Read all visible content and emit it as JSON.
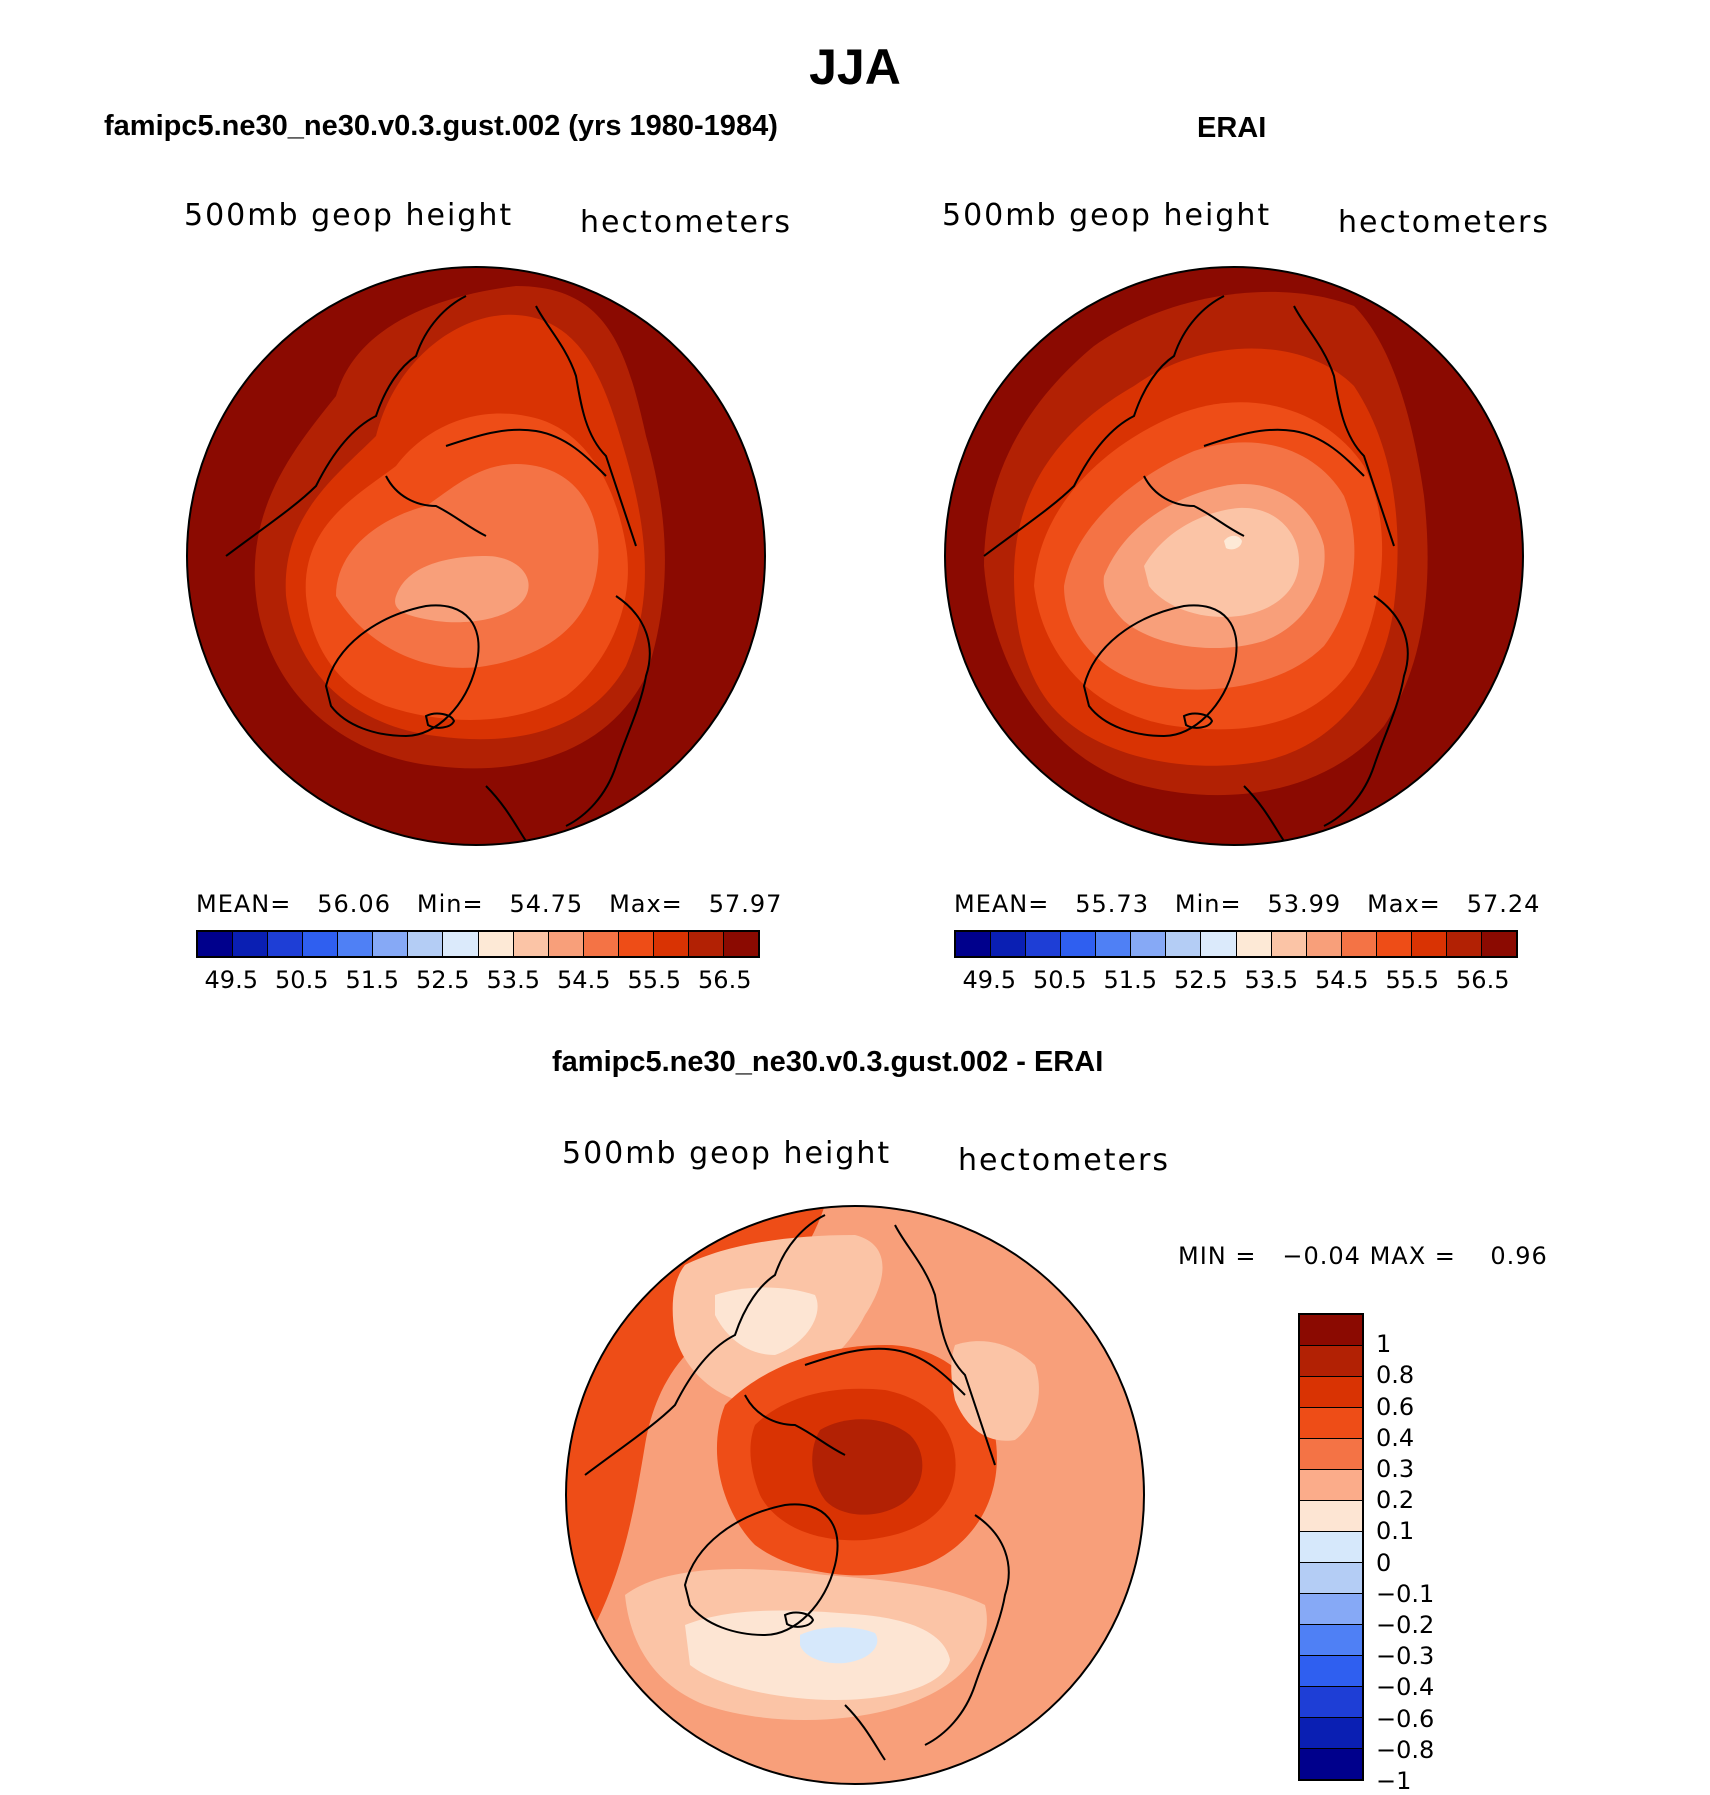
{
  "figure": {
    "title": "JJA"
  },
  "panels": {
    "model": {
      "title": "famipc5.ne30_ne30.v0.3.gust.002 (yrs 1980-1984)",
      "variable": "500mb geop height",
      "units": "hectometers",
      "stats": {
        "mean_label": "MEAN=",
        "mean": "56.06",
        "min_label": "Min=",
        "min": "54.75",
        "max_label": "Max=",
        "max": "57.97"
      }
    },
    "obs": {
      "title": "ERAI",
      "variable": "500mb geop height",
      "units": "hectometers",
      "stats": {
        "mean_label": "MEAN=",
        "mean": "55.73",
        "min_label": "Min=",
        "min": "53.99",
        "max_label": "Max=",
        "max": "57.24"
      }
    },
    "diff": {
      "title": "famipc5.ne30_ne30.v0.3.gust.002 - ERAI",
      "variable": "500mb geop height",
      "units": "hectometers",
      "stats": {
        "min_label": "MIN =",
        "min": "−0.04",
        "max_label": "MAX =",
        "max": "0.96"
      }
    }
  },
  "colorbars": {
    "abs_ticks": [
      "49.5",
      "50.5",
      "51.5",
      "52.5",
      "53.5",
      "54.5",
      "55.5",
      "56.5"
    ],
    "abs_colors": [
      "#00008c",
      "#0a1fb3",
      "#1e3ed6",
      "#2f5ff0",
      "#4f80f5",
      "#86a9f6",
      "#b4cdf5",
      "#dbeafb",
      "#fde9d6",
      "#fbc4a6",
      "#f89f7a",
      "#f47345",
      "#ee4d17",
      "#d93303",
      "#b22104",
      "#8b0a01"
    ],
    "diff_ticks": [
      "1",
      "0.8",
      "0.6",
      "0.4",
      "0.3",
      "0.2",
      "0.1",
      "0",
      "−0.1",
      "−0.2",
      "−0.3",
      "−0.4",
      "−0.6",
      "−0.8",
      "−1"
    ],
    "diff_colors": [
      "#8b0a01",
      "#b22104",
      "#d93303",
      "#ee4d17",
      "#f47345",
      "#fbac8a",
      "#fde5d3",
      "#d6e8fb",
      "#b4cdf5",
      "#86a9f6",
      "#4f80f5",
      "#2f5ff0",
      "#1e3ed6",
      "#0a1fb3",
      "#00008c"
    ]
  },
  "chart_data": [
    {
      "type": "heatmap",
      "projection": "north polar stereographic",
      "title": "famipc5.ne30_ne30.v0.3.gust.002 (yrs 1980-1984)",
      "field": "500mb geop height",
      "units": "hectometers",
      "levels": [
        49.5,
        50,
        50.5,
        51,
        51.5,
        52,
        52.5,
        53,
        53.5,
        54,
        54.5,
        55,
        55.5,
        56,
        56.5
      ],
      "mean": 56.06,
      "min": 54.75,
      "max": 57.97
    },
    {
      "type": "heatmap",
      "projection": "north polar stereographic",
      "title": "ERAI",
      "field": "500mb geop height",
      "units": "hectometers",
      "levels": [
        49.5,
        50,
        50.5,
        51,
        51.5,
        52,
        52.5,
        53,
        53.5,
        54,
        54.5,
        55,
        55.5,
        56,
        56.5
      ],
      "mean": 55.73,
      "min": 53.99,
      "max": 57.24
    },
    {
      "type": "heatmap",
      "projection": "north polar stereographic",
      "title": "famipc5.ne30_ne30.v0.3.gust.002 - ERAI",
      "field": "500mb geop height",
      "units": "hectometers",
      "levels": [
        -1,
        -0.8,
        -0.6,
        -0.4,
        -0.3,
        -0.2,
        -0.1,
        0,
        0.1,
        0.2,
        0.3,
        0.4,
        0.6,
        0.8,
        1
      ],
      "min": -0.04,
      "max": 0.96
    }
  ]
}
